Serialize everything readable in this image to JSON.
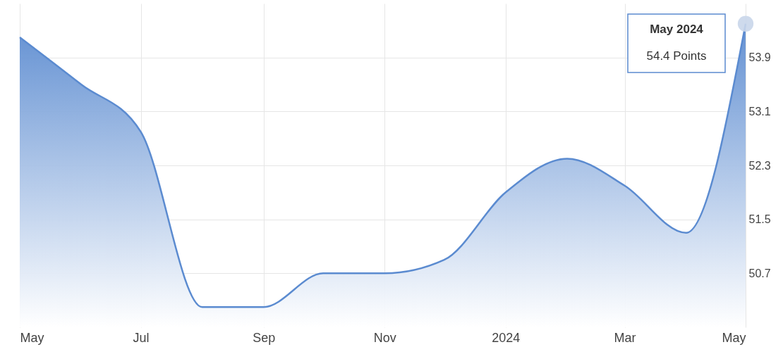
{
  "chart_data": {
    "type": "area",
    "x": [
      "2023-05",
      "2023-06",
      "2023-07",
      "2023-08",
      "2023-09",
      "2023-10",
      "2023-11",
      "2023-12",
      "2024-01",
      "2024-02",
      "2024-03",
      "2024-04",
      "2024-05"
    ],
    "series": [
      {
        "color": "#5b8bd0",
        "values": [
          54.2,
          53.5,
          52.8,
          50.2,
          50.2,
          50.7,
          50.7,
          50.9,
          51.9,
          52.4,
          52.0,
          51.3,
          54.4
        ]
      }
    ],
    "xlim": [
      "2023-05",
      "2024-05"
    ],
    "xticks": [
      {
        "value": "2023-05",
        "label": "May"
      },
      {
        "value": "2023-07",
        "label": "Jul"
      },
      {
        "value": "2023-09",
        "label": "Sep"
      },
      {
        "value": "2023-11",
        "label": "Nov"
      },
      {
        "value": "2024-01",
        "label": "2024"
      },
      {
        "value": "2024-03",
        "label": "Mar"
      },
      {
        "value": "2024-05",
        "label": "May"
      }
    ],
    "ylim": [
      49.9,
      54.7
    ],
    "yticks": [
      50.7,
      51.5,
      52.3,
      53.1,
      53.9
    ],
    "grid": true,
    "marker": "none",
    "line_style": "solid",
    "annotations": [
      "May 2024\n54.4 Points"
    ]
  }
}
